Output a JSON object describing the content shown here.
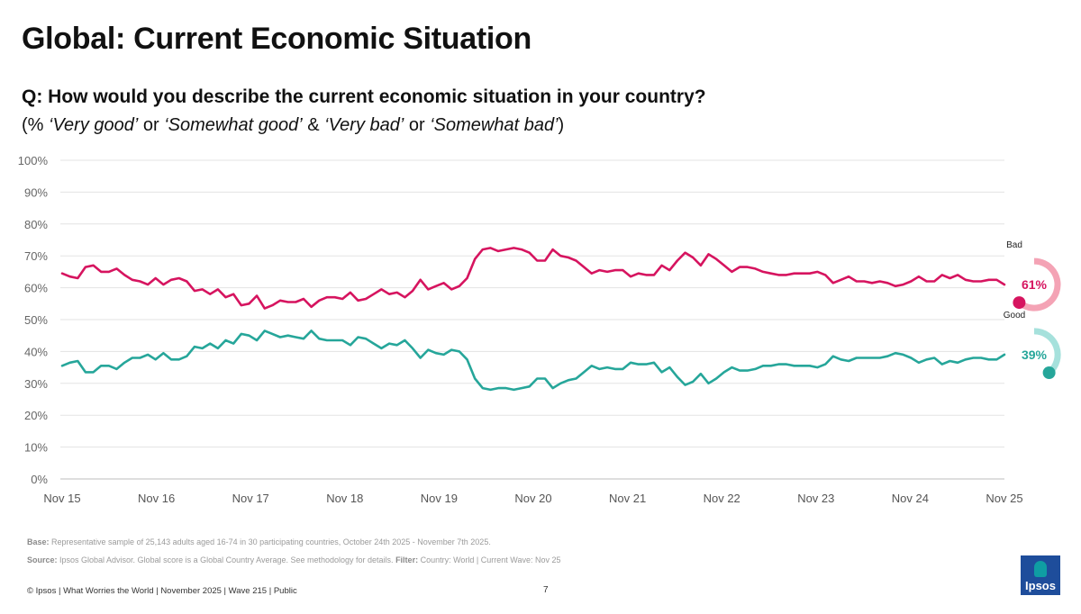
{
  "title": "Global: Current Economic Situation",
  "question": "Q: How would you describe the current economic situation in your country?",
  "subquestion": {
    "open": "(% ",
    "very_good": "‘Very good’",
    "or1": " or ",
    "somewhat_good": "‘Somewhat good’",
    "amp": " & ",
    "very_bad": "‘Very bad’",
    "or2": " or ",
    "somewhat_bad": "‘Somewhat bad’",
    "close": ")"
  },
  "notes": {
    "base_label": "Base:",
    "base_text": " Representative sample of 25,143 adults aged 16-74 in 30 participating countries, October 24th 2025 - November 7th 2025.",
    "source_label": "Source:",
    "source_text": " Ipsos Global Advisor. Global score is a Global Country Average. See methodology for details. ",
    "filter_label": "Filter:",
    "filter_text": " Country: World | Current Wave: Nov 25"
  },
  "footer": "© Ipsos | What Worries the World | November 2025 | Wave 215 | Public",
  "page_number": "7",
  "logo_text": "Ipsos",
  "colors": {
    "bad": "#d6145f",
    "good": "#26a69a",
    "bad_ring": "#f4a3b5",
    "good_ring": "#a6e1dc",
    "logo": "#1e4d9b"
  },
  "chart_data": {
    "type": "line",
    "ylim": [
      0,
      100
    ],
    "yticks": [
      "0%",
      "10%",
      "20%",
      "30%",
      "40%",
      "50%",
      "60%",
      "70%",
      "80%",
      "90%",
      "100%"
    ],
    "xticks": [
      "Nov 15",
      "Nov 16",
      "Nov 17",
      "Nov 18",
      "Nov 19",
      "Nov 20",
      "Nov 21",
      "Nov 22",
      "Nov 23",
      "Nov 24",
      "Nov 25"
    ],
    "grid": true,
    "series": [
      {
        "name": "Bad",
        "color": "#d6145f",
        "label_value": "61%",
        "points": [
          [
            0,
            64.5
          ],
          [
            0.5,
            63.5
          ],
          [
            1,
            63
          ],
          [
            1.5,
            66.5
          ],
          [
            2,
            67
          ],
          [
            2.5,
            65
          ],
          [
            3,
            65
          ],
          [
            3.5,
            66
          ],
          [
            4,
            64
          ],
          [
            4.5,
            62.5
          ],
          [
            5,
            62
          ],
          [
            5.5,
            61
          ],
          [
            6,
            63
          ],
          [
            6.5,
            61
          ],
          [
            7,
            62.5
          ],
          [
            7.5,
            63
          ],
          [
            8,
            62
          ],
          [
            8.5,
            59
          ],
          [
            9,
            59.5
          ],
          [
            9.5,
            58
          ],
          [
            10,
            59.5
          ],
          [
            10.5,
            57
          ],
          [
            11,
            58
          ],
          [
            11.5,
            54.5
          ],
          [
            12,
            55
          ],
          [
            12.5,
            57.5
          ],
          [
            13,
            53.5
          ],
          [
            13.5,
            54.5
          ],
          [
            14,
            56
          ],
          [
            14.5,
            55.5
          ],
          [
            15,
            55.5
          ],
          [
            15.5,
            56.5
          ],
          [
            16,
            54
          ],
          [
            16.5,
            56
          ],
          [
            17,
            57
          ],
          [
            17.5,
            57
          ],
          [
            18,
            56.5
          ],
          [
            18.5,
            58.5
          ],
          [
            19,
            56
          ],
          [
            19.5,
            56.5
          ],
          [
            20,
            58
          ],
          [
            20.5,
            59.5
          ],
          [
            21,
            58
          ],
          [
            21.5,
            58.5
          ],
          [
            22,
            57
          ],
          [
            22.5,
            59
          ],
          [
            23,
            62.5
          ],
          [
            23.5,
            59.5
          ],
          [
            24,
            60.5
          ],
          [
            24.5,
            61.5
          ],
          [
            25,
            59.5
          ],
          [
            25.5,
            60.5
          ],
          [
            26,
            63
          ],
          [
            26.5,
            69
          ],
          [
            27,
            72
          ],
          [
            27.5,
            72.5
          ],
          [
            28,
            71.5
          ],
          [
            28.5,
            72
          ],
          [
            29,
            72.5
          ],
          [
            29.5,
            72
          ],
          [
            30,
            71
          ],
          [
            30.5,
            68.5
          ],
          [
            31,
            68.5
          ],
          [
            31.5,
            72
          ],
          [
            32,
            70
          ],
          [
            32.5,
            69.5
          ],
          [
            33,
            68.5
          ],
          [
            33.5,
            66.5
          ],
          [
            34,
            64.5
          ],
          [
            34.5,
            65.5
          ],
          [
            35,
            65
          ],
          [
            35.5,
            65.5
          ],
          [
            36,
            65.5
          ],
          [
            36.5,
            63.5
          ],
          [
            37,
            64.5
          ],
          [
            37.5,
            64
          ],
          [
            38,
            64
          ],
          [
            38.5,
            67
          ],
          [
            39,
            65.5
          ],
          [
            39.5,
            68.5
          ],
          [
            40,
            71
          ],
          [
            40.5,
            69.5
          ],
          [
            41,
            67
          ],
          [
            41.5,
            70.5
          ],
          [
            42,
            69
          ],
          [
            42.5,
            67
          ],
          [
            43,
            65
          ],
          [
            43.5,
            66.5
          ],
          [
            44,
            66.5
          ],
          [
            44.5,
            66
          ],
          [
            45,
            65
          ],
          [
            45.5,
            64.5
          ],
          [
            46,
            64
          ],
          [
            46.5,
            64
          ],
          [
            47,
            64.5
          ],
          [
            47.5,
            64.5
          ],
          [
            48,
            64.5
          ],
          [
            48.5,
            65
          ],
          [
            49,
            64
          ],
          [
            49.5,
            61.5
          ],
          [
            50,
            62.5
          ],
          [
            50.5,
            63.5
          ],
          [
            51,
            62
          ],
          [
            51.5,
            62
          ],
          [
            52,
            61.5
          ],
          [
            52.5,
            62
          ],
          [
            53,
            61.5
          ],
          [
            53.5,
            60.5
          ],
          [
            54,
            61
          ],
          [
            54.5,
            62
          ],
          [
            55,
            63.5
          ],
          [
            55.5,
            62
          ],
          [
            56,
            62
          ],
          [
            56.5,
            64
          ],
          [
            57,
            63
          ],
          [
            57.5,
            64
          ],
          [
            58,
            62.5
          ],
          [
            58.5,
            62
          ],
          [
            59,
            62
          ],
          [
            59.5,
            62.5
          ],
          [
            60,
            62.5
          ],
          [
            60.5,
            61
          ]
        ]
      },
      {
        "name": "Good",
        "color": "#26a69a",
        "label_value": "39%",
        "points": [
          [
            0,
            35.5
          ],
          [
            0.5,
            36.5
          ],
          [
            1,
            37
          ],
          [
            1.5,
            33.5
          ],
          [
            2,
            33.5
          ],
          [
            2.5,
            35.5
          ],
          [
            3,
            35.5
          ],
          [
            3.5,
            34.5
          ],
          [
            4,
            36.5
          ],
          [
            4.5,
            38
          ],
          [
            5,
            38
          ],
          [
            5.5,
            39
          ],
          [
            6,
            37.5
          ],
          [
            6.5,
            39.5
          ],
          [
            7,
            37.5
          ],
          [
            7.5,
            37.5
          ],
          [
            8,
            38.5
          ],
          [
            8.5,
            41.5
          ],
          [
            9,
            41
          ],
          [
            9.5,
            42.5
          ],
          [
            10,
            41
          ],
          [
            10.5,
            43.5
          ],
          [
            11,
            42.5
          ],
          [
            11.5,
            45.5
          ],
          [
            12,
            45
          ],
          [
            12.5,
            43.5
          ],
          [
            13,
            46.5
          ],
          [
            13.5,
            45.5
          ],
          [
            14,
            44.5
          ],
          [
            14.5,
            45
          ],
          [
            15,
            44.5
          ],
          [
            15.5,
            44
          ],
          [
            16,
            46.5
          ],
          [
            16.5,
            44
          ],
          [
            17,
            43.5
          ],
          [
            17.5,
            43.5
          ],
          [
            18,
            43.5
          ],
          [
            18.5,
            42
          ],
          [
            19,
            44.5
          ],
          [
            19.5,
            44
          ],
          [
            20,
            42.5
          ],
          [
            20.5,
            41
          ],
          [
            21,
            42.5
          ],
          [
            21.5,
            42
          ],
          [
            22,
            43.5
          ],
          [
            22.5,
            41
          ],
          [
            23,
            38
          ],
          [
            23.5,
            40.5
          ],
          [
            24,
            39.5
          ],
          [
            24.5,
            39
          ],
          [
            25,
            40.5
          ],
          [
            25.5,
            40
          ],
          [
            26,
            37.5
          ],
          [
            26.5,
            31.5
          ],
          [
            27,
            28.5
          ],
          [
            27.5,
            28
          ],
          [
            28,
            28.5
          ],
          [
            28.5,
            28.5
          ],
          [
            29,
            28
          ],
          [
            29.5,
            28.5
          ],
          [
            30,
            29
          ],
          [
            30.5,
            31.5
          ],
          [
            31,
            31.5
          ],
          [
            31.5,
            28.5
          ],
          [
            32,
            30
          ],
          [
            32.5,
            31
          ],
          [
            33,
            31.5
          ],
          [
            33.5,
            33.5
          ],
          [
            34,
            35.5
          ],
          [
            34.5,
            34.5
          ],
          [
            35,
            35
          ],
          [
            35.5,
            34.5
          ],
          [
            36,
            34.5
          ],
          [
            36.5,
            36.5
          ],
          [
            37,
            36
          ],
          [
            37.5,
            36
          ],
          [
            38,
            36.5
          ],
          [
            38.5,
            33.5
          ],
          [
            39,
            35
          ],
          [
            39.5,
            32
          ],
          [
            40,
            29.5
          ],
          [
            40.5,
            30.5
          ],
          [
            41,
            33
          ],
          [
            41.5,
            30
          ],
          [
            42,
            31.5
          ],
          [
            42.5,
            33.5
          ],
          [
            43,
            35
          ],
          [
            43.5,
            34
          ],
          [
            44,
            34
          ],
          [
            44.5,
            34.5
          ],
          [
            45,
            35.5
          ],
          [
            45.5,
            35.5
          ],
          [
            46,
            36
          ],
          [
            46.5,
            36
          ],
          [
            47,
            35.5
          ],
          [
            47.5,
            35.5
          ],
          [
            48,
            35.5
          ],
          [
            48.5,
            35
          ],
          [
            49,
            36
          ],
          [
            49.5,
            38.5
          ],
          [
            50,
            37.5
          ],
          [
            50.5,
            37
          ],
          [
            51,
            38
          ],
          [
            51.5,
            38
          ],
          [
            52,
            38
          ],
          [
            52.5,
            38
          ],
          [
            53,
            38.5
          ],
          [
            53.5,
            39.5
          ],
          [
            54,
            39
          ],
          [
            54.5,
            38
          ],
          [
            55,
            36.5
          ],
          [
            55.5,
            37.5
          ],
          [
            56,
            38
          ],
          [
            56.5,
            36
          ],
          [
            57,
            37
          ],
          [
            57.5,
            36.5
          ],
          [
            58,
            37.5
          ],
          [
            58.5,
            38
          ],
          [
            59,
            38
          ],
          [
            59.5,
            37.5
          ],
          [
            60,
            37.5
          ],
          [
            60.5,
            39
          ]
        ]
      }
    ]
  }
}
